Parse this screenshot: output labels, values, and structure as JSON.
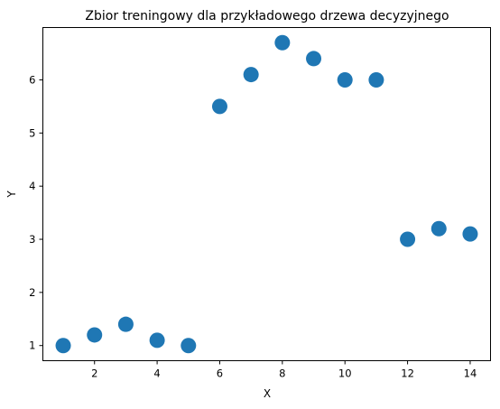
{
  "chart_data": {
    "type": "scatter",
    "title": "Zbior treningowy dla przykładowego drzewa decyzyjnego",
    "xlabel": "X",
    "ylabel": "Y",
    "x": [
      1,
      2,
      3,
      4,
      5,
      6,
      7,
      8,
      9,
      10,
      11,
      12,
      13,
      14
    ],
    "y": [
      1.0,
      1.2,
      1.4,
      1.1,
      1.0,
      5.5,
      6.1,
      6.7,
      6.4,
      6.0,
      6.0,
      3.0,
      3.2,
      3.1
    ],
    "xlim": [
      0.35,
      14.65
    ],
    "ylim": [
      0.715,
      6.985
    ],
    "xticks": [
      2,
      4,
      6,
      8,
      10,
      12,
      14
    ],
    "xtick_labels": [
      "2",
      "4",
      "6",
      "8",
      "10",
      "12",
      "14"
    ],
    "yticks": [
      1,
      2,
      3,
      4,
      5,
      6
    ],
    "ytick_labels": [
      "1",
      "2",
      "3",
      "4",
      "5",
      "6"
    ],
    "grid": false,
    "legend": "none",
    "marker_color": "#1f77b4"
  }
}
